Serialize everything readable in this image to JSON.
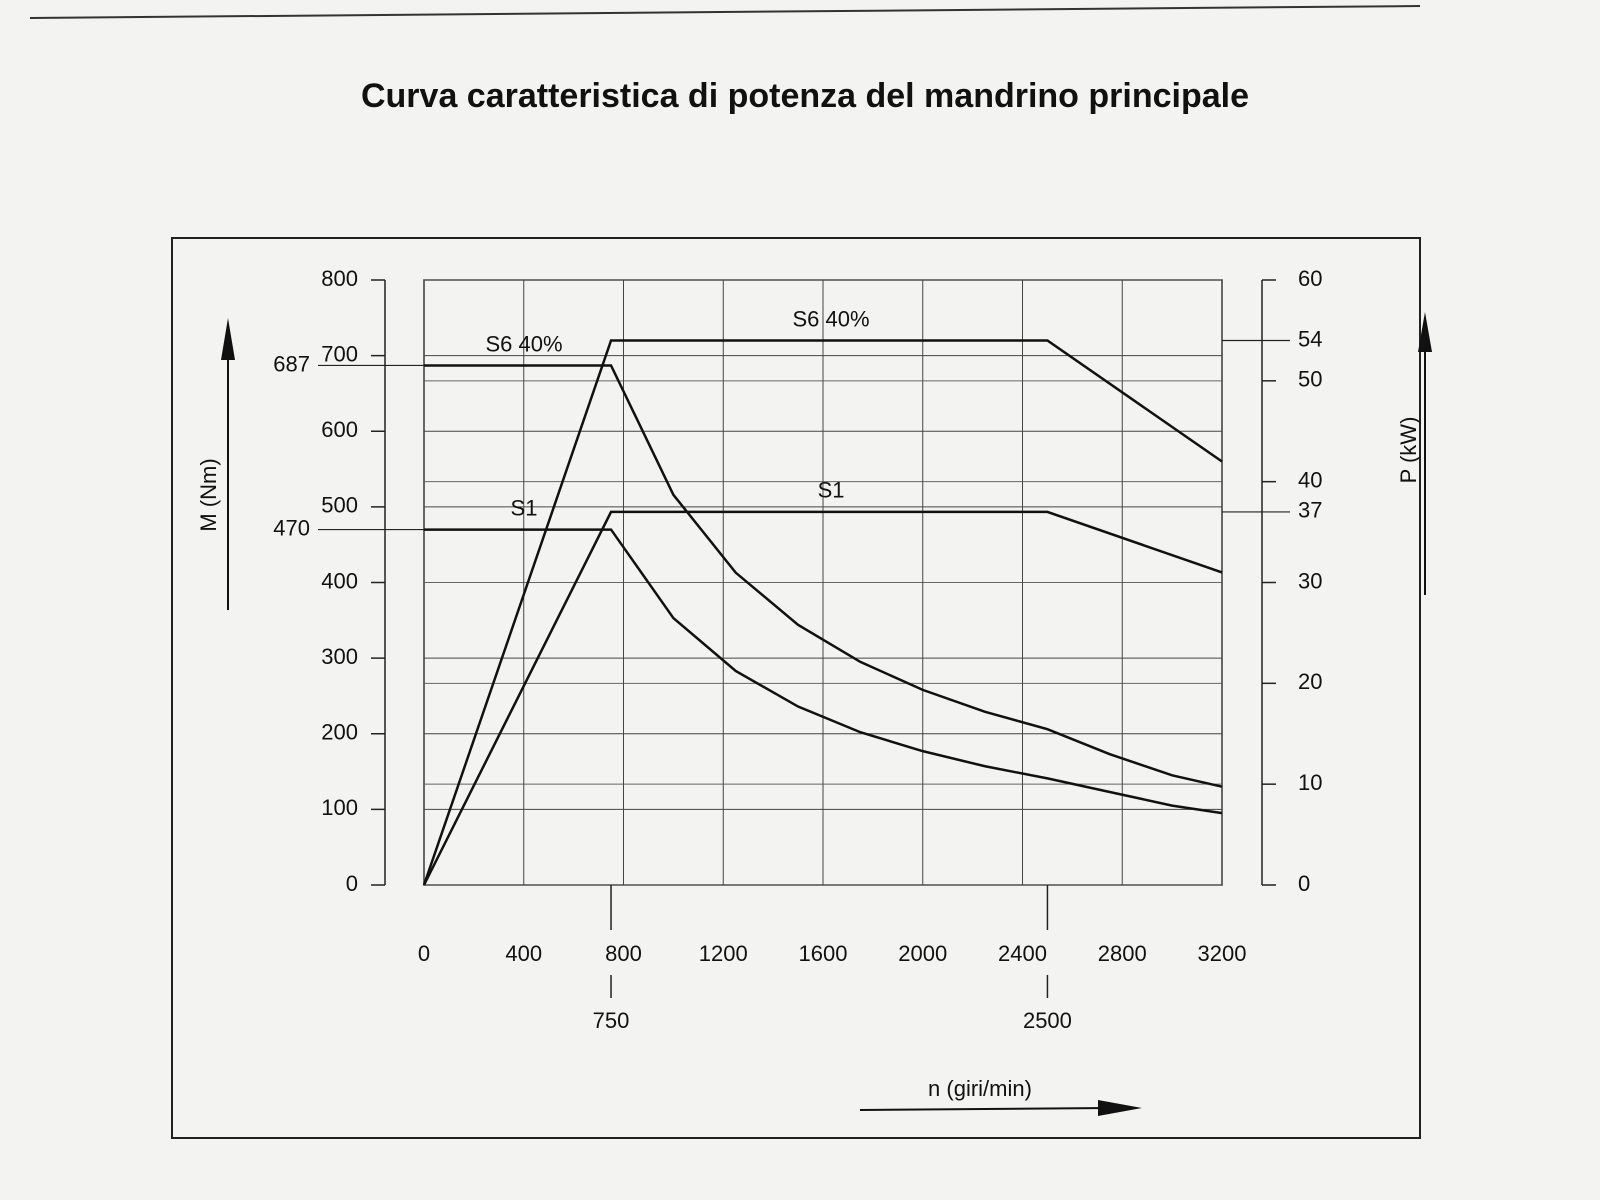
{
  "chart_data": {
    "type": "line",
    "title": "Curva caratteristica di potenza del mandrino principale",
    "x_label": "n (giri/min)",
    "y_label": "M (Nm)",
    "y2_label": "P (kW)",
    "xlim": [
      0,
      3200
    ],
    "xticks": [
      0,
      400,
      800,
      1200,
      1600,
      2000,
      2400,
      2800,
      3200
    ],
    "ylim": [
      0,
      800
    ],
    "yticks": [
      0,
      100,
      200,
      300,
      400,
      500,
      600,
      700,
      800
    ],
    "y2lim": [
      0,
      60
    ],
    "y2ticks": [
      0,
      10,
      20,
      30,
      40,
      50,
      60
    ],
    "x_markers": [
      750,
      2500
    ],
    "y_markers": [
      687,
      470
    ],
    "y2_markers": [
      54,
      37
    ],
    "grid": true,
    "series": [
      {
        "name": "S6 40%",
        "color": "#111111",
        "axis": "y",
        "x": [
          0,
          750,
          1000,
          1250,
          1500,
          1750,
          2000,
          2250,
          2500,
          2750,
          3000,
          3200
        ],
        "values": [
          687,
          687,
          516,
          413,
          344,
          295,
          258,
          229,
          206,
          173,
          145,
          130
        ]
      },
      {
        "name": "S6 40%",
        "color": "#111111",
        "axis": "y2",
        "x": [
          0,
          750,
          2500,
          3200
        ],
        "values": [
          0,
          54,
          54,
          42
        ]
      },
      {
        "name": "S1",
        "color": "#111111",
        "axis": "y",
        "x": [
          0,
          750,
          1000,
          1250,
          1500,
          1750,
          2000,
          2250,
          2500,
          2750,
          3000,
          3200
        ],
        "values": [
          470,
          470,
          353,
          283,
          236,
          202,
          177,
          157,
          141,
          123,
          105,
          95
        ]
      },
      {
        "name": "S1",
        "color": "#111111",
        "axis": "y2",
        "x": [
          0,
          750,
          2500,
          3200
        ],
        "values": [
          0,
          37,
          37,
          31
        ]
      }
    ]
  }
}
